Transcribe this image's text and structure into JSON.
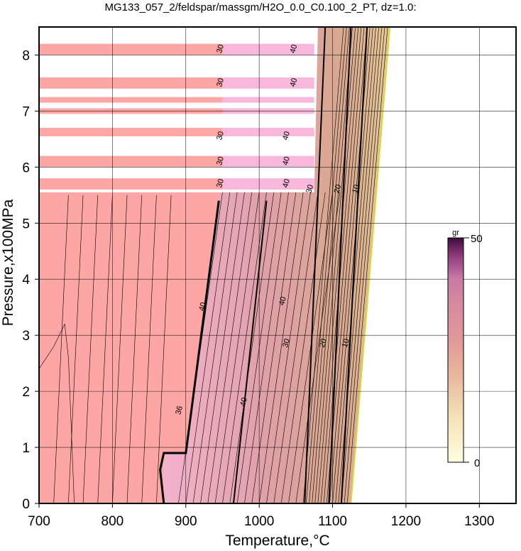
{
  "chart_data": {
    "type": "heatmap",
    "title": "MG133_057_2/feldspar/massgm/H2O_0.0_C0.100_2_PT, dz=1.0:",
    "xlabel": "Temperature,°C",
    "ylabel": "Pressure,x100MPa",
    "xlim": [
      700,
      1350
    ],
    "ylim": [
      0,
      8.5
    ],
    "xticks": [
      700,
      800,
      900,
      1000,
      1100,
      1200,
      1300
    ],
    "yticks": [
      0,
      1,
      2,
      3,
      4,
      5,
      6,
      7,
      8
    ],
    "xtick_labels": [
      "700",
      "800",
      "900",
      "1000",
      "1100",
      "1200",
      "1300"
    ],
    "ytick_labels": [
      "0",
      "1",
      "2",
      "3",
      "4",
      "5",
      "6",
      "7",
      "8"
    ],
    "grid": true,
    "colorbar": {
      "label": "gr",
      "min": 0,
      "max": 50,
      "min_label": "0",
      "max_label": "50",
      "colors": [
        "#ffffe0",
        "#f4e2b8",
        "#e8b49c",
        "#e09898",
        "#d88aa0",
        "#c77aa4",
        "#8e3c7e",
        "#3c0a3c"
      ],
      "position": "right"
    },
    "contour_labels": [
      {
        "text": "40",
        "x": 1035,
        "y": 3.6
      },
      {
        "text": "40",
        "x": 982,
        "y": 1.8
      },
      {
        "text": "30",
        "x": 1040,
        "y": 2.85
      },
      {
        "text": "20",
        "x": 1090,
        "y": 2.85
      },
      {
        "text": "10",
        "x": 1121,
        "y": 2.85
      },
      {
        "text": "30",
        "x": 1072,
        "y": 5.6
      },
      {
        "text": "20",
        "x": 1110,
        "y": 5.6
      },
      {
        "text": "10",
        "x": 1135,
        "y": 5.6
      },
      {
        "text": "40",
        "x": 926,
        "y": 3.5
      },
      {
        "text": "36",
        "x": 894,
        "y": 1.65
      }
    ],
    "band_labels": [
      {
        "text": "30",
        "x": 950,
        "y": 8.1
      },
      {
        "text": "40",
        "x": 1050,
        "y": 8.1
      },
      {
        "text": "30",
        "x": 950,
        "y": 7.5
      },
      {
        "text": "40",
        "x": 1050,
        "y": 7.5
      },
      {
        "text": "30",
        "x": 950,
        "y": 6.55
      },
      {
        "text": "40",
        "x": 1040,
        "y": 6.55
      },
      {
        "text": "30",
        "x": 950,
        "y": 6.1
      },
      {
        "text": "40",
        "x": 1040,
        "y": 6.1
      },
      {
        "text": "30",
        "x": 950,
        "y": 5.7
      },
      {
        "text": "40",
        "x": 1040,
        "y": 5.7
      }
    ]
  }
}
